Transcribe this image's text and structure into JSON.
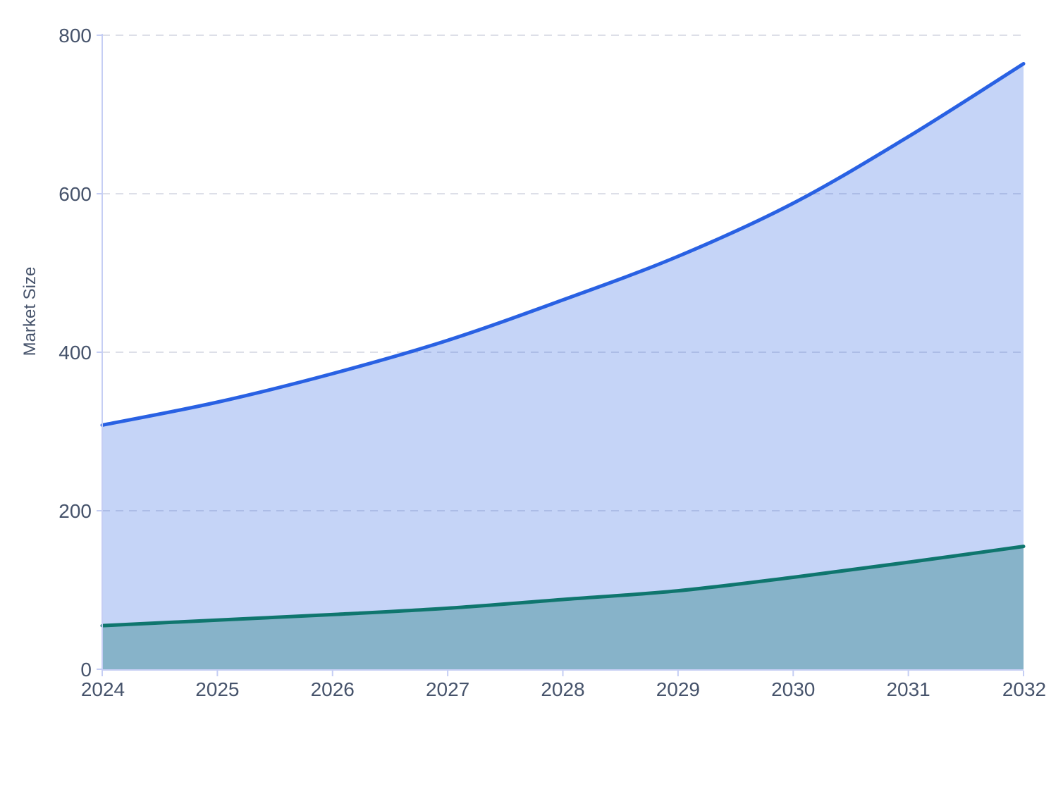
{
  "chart_data": {
    "type": "area",
    "title": "",
    "xlabel": "",
    "ylabel": "Market Size",
    "x": [
      2024,
      2025,
      2026,
      2027,
      2028,
      2029,
      2030,
      2031,
      2032
    ],
    "series": [
      {
        "name": "blue",
        "values": [
          308,
          337,
          373,
          415,
          466,
          521,
          588,
          672,
          764
        ],
        "line_color": "#2961e3",
        "fill_color": "rgba(41,97,227,0.27)"
      },
      {
        "name": "teal",
        "values": [
          55,
          62,
          69,
          77,
          88,
          99,
          116,
          135,
          155
        ],
        "line_color": "#0f766e",
        "fill_color": "rgba(15,118,110,0.34)"
      }
    ],
    "ylim": [
      0,
      800
    ],
    "yticks": [
      0,
      200,
      400,
      600,
      800
    ],
    "grid": "horizontal-dashed",
    "legend": "none",
    "colors": {
      "background": "#ffffff",
      "axis_line": "#c5cef4",
      "grid_line": "#dddfe8",
      "tick_text": "#46536b"
    }
  }
}
